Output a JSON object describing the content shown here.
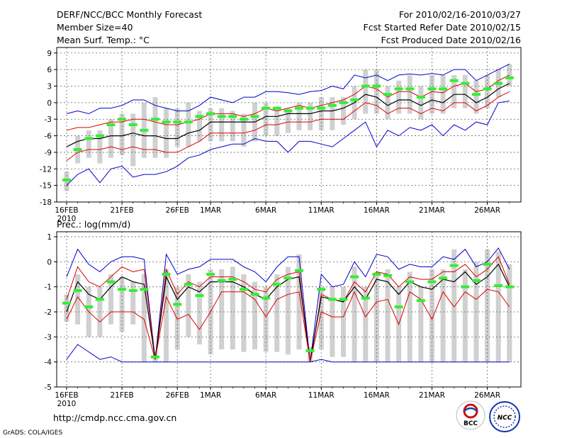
{
  "header": {
    "line1_left": "DERF/NCC/BCC Monthly Forecast",
    "line2_left": "Member Size=40",
    "line3_left": "Mean Surf. Temp.: °C",
    "line1_right": "For 2010/02/16-2010/03/27",
    "line2_right": "Fcst Started Refer Date 2010/02/15",
    "line3_right": "Fcst Produced Date 2010/02/16"
  },
  "footer": {
    "url": "http://cmdp.ncc.cma.gov.cn",
    "credit": "GrADS: COLA/IGES",
    "logo_bcc": "BCC",
    "logo_ncc": "NCC"
  },
  "colors": {
    "max_min": "#0000cc",
    "spread": "#dd0000",
    "mean": "#000000",
    "box": "#d0d0d0",
    "median": "#33ee33",
    "grid": "#666666"
  },
  "chart_data": [
    {
      "type": "line",
      "title": "Mean Surf. Temp.: °C",
      "days": 40,
      "xlabels": [
        {
          "day": 0,
          "label": "16FEB"
        },
        {
          "day": 5,
          "label": "21FEB"
        },
        {
          "day": 10,
          "label": "26FEB"
        },
        {
          "day": 13,
          "label": "1MAR"
        },
        {
          "day": 18,
          "label": "6MAR"
        },
        {
          "day": 23,
          "label": "11MAR"
        },
        {
          "day": 28,
          "label": "16MAR"
        },
        {
          "day": 33,
          "label": "21MAR"
        },
        {
          "day": 38,
          "label": "26MAR"
        }
      ],
      "year_label": "2010",
      "ylim": [
        -18,
        10
      ],
      "yticks": [
        -18,
        -15,
        -12,
        -9,
        -6,
        -3,
        0,
        3,
        6,
        9
      ],
      "series": [
        {
          "name": "max",
          "values": [
            -2,
            -1.5,
            -2,
            -1,
            -1,
            -0.5,
            0.5,
            0.5,
            -0.5,
            -1,
            -1.5,
            -1.5,
            -0.5,
            1,
            0.5,
            0,
            1,
            1,
            2,
            2,
            1.8,
            1.5,
            2,
            2.2,
            3,
            2.5,
            5,
            4.5,
            5,
            4,
            5,
            5.2,
            5,
            5.3,
            5,
            6,
            6,
            4,
            5,
            6,
            7
          ]
        },
        {
          "name": "upper",
          "values": [
            -5,
            -4.5,
            -4.5,
            -4,
            -3.5,
            -3.5,
            -3,
            -3,
            -3.5,
            -4,
            -4,
            -3.5,
            -3,
            -2,
            -2,
            -2,
            -2.5,
            -2,
            -1,
            -1.5,
            -1,
            -0.5,
            -1,
            -0.5,
            0,
            0.5,
            1.5,
            3,
            2.5,
            1,
            2,
            2,
            1,
            2,
            1.8,
            3,
            3.5,
            2,
            2.5,
            4,
            5
          ]
        },
        {
          "name": "mean",
          "values": [
            -8,
            -7,
            -6.5,
            -6.5,
            -6,
            -6,
            -5.5,
            -6,
            -6,
            -6.5,
            -6.5,
            -5.5,
            -5,
            -3.5,
            -3.5,
            -3.5,
            -3.5,
            -3.5,
            -2.5,
            -2.5,
            -2,
            -2,
            -2,
            -1.5,
            -1.5,
            -1,
            0,
            1.5,
            1,
            -0.5,
            0.5,
            0.5,
            -0.5,
            0.5,
            0,
            1.5,
            1.5,
            0,
            1,
            2.5,
            3.5
          ]
        },
        {
          "name": "lower",
          "values": [
            -10.5,
            -9,
            -8.5,
            -8.5,
            -8,
            -8.5,
            -8,
            -8.5,
            -8.5,
            -9,
            -9,
            -8,
            -7,
            -5.5,
            -5.5,
            -5.5,
            -5.5,
            -5,
            -4,
            -4,
            -3.5,
            -3.5,
            -3.5,
            -3,
            -3,
            -3,
            -1.5,
            0,
            -0.5,
            -2,
            -1,
            -1,
            -2,
            -1,
            -1.5,
            0,
            0,
            -1.5,
            -0.5,
            1,
            2
          ]
        },
        {
          "name": "min",
          "values": [
            -15,
            -13,
            -12,
            -14.5,
            -12,
            -11.5,
            -13.5,
            -13,
            -13,
            -12.5,
            -11.5,
            -10,
            -9.5,
            -8.5,
            -8,
            -7.5,
            -7.5,
            -6.5,
            -7,
            -7,
            -9,
            -7,
            -7,
            -7.5,
            -8,
            -6.5,
            -5,
            -3.5,
            -8,
            -5,
            -6,
            -4.5,
            -5,
            -4,
            -6,
            -4,
            -5,
            -3.5,
            -4,
            0,
            0.3
          ]
        }
      ],
      "boxes": [
        {
          "lo": -16,
          "hi": -12.5,
          "med": -14
        },
        {
          "lo": -11,
          "hi": -6,
          "med": -8.5
        },
        {
          "lo": -10,
          "hi": -5,
          "med": -6.5
        },
        {
          "lo": -11,
          "hi": -5,
          "med": -6
        },
        {
          "lo": -10,
          "hi": -3,
          "med": -4
        },
        {
          "lo": -9.5,
          "hi": -2,
          "med": -3
        },
        {
          "lo": -11.5,
          "hi": -2,
          "med": -4
        },
        {
          "lo": -10,
          "hi": 0,
          "med": -5
        },
        {
          "lo": -10,
          "hi": 1,
          "med": -3
        },
        {
          "lo": -10,
          "hi": -1,
          "med": -3.5
        },
        {
          "lo": -8,
          "hi": -1,
          "med": -3.5
        },
        {
          "lo": -8,
          "hi": 0,
          "med": -3.5
        },
        {
          "lo": -7,
          "hi": -1.5,
          "med": -2.5
        },
        {
          "lo": -7,
          "hi": -1,
          "med": -2
        },
        {
          "lo": -7,
          "hi": -1,
          "med": -2.5
        },
        {
          "lo": -7,
          "hi": -1.5,
          "med": -2.5
        },
        {
          "lo": -8,
          "hi": -2,
          "med": -3
        },
        {
          "lo": -7,
          "hi": 0,
          "med": -2.5
        },
        {
          "lo": -6,
          "hi": 0,
          "med": -1
        },
        {
          "lo": -6,
          "hi": -1,
          "med": -1
        },
        {
          "lo": -5.5,
          "hi": -1,
          "med": -1.5
        },
        {
          "lo": -5,
          "hi": 0,
          "med": -1
        },
        {
          "lo": -5,
          "hi": 0,
          "med": -1
        },
        {
          "lo": -5,
          "hi": 1,
          "med": -1
        },
        {
          "lo": -5,
          "hi": 1,
          "med": -0.5
        },
        {
          "lo": -4,
          "hi": 1,
          "med": 0
        },
        {
          "lo": -3,
          "hi": 3,
          "med": 0.5
        },
        {
          "lo": -2,
          "hi": 6,
          "med": 3
        },
        {
          "lo": -2,
          "hi": 6,
          "med": 3
        },
        {
          "lo": -3,
          "hi": 3,
          "med": 1.5
        },
        {
          "lo": -2,
          "hi": 4,
          "med": 2.5
        },
        {
          "lo": -2,
          "hi": 5,
          "med": 2.5
        },
        {
          "lo": -3,
          "hi": 3,
          "med": 1
        },
        {
          "lo": -2,
          "hi": 5,
          "med": 2.5
        },
        {
          "lo": -2,
          "hi": 5,
          "med": 2.5
        },
        {
          "lo": -1,
          "hi": 5,
          "med": 4
        },
        {
          "lo": -1,
          "hi": 5,
          "med": 3.5
        },
        {
          "lo": -2,
          "hi": 4,
          "med": 1.5
        },
        {
          "lo": -1,
          "hi": 5,
          "med": 2.5
        },
        {
          "lo": 1,
          "hi": 6,
          "med": 3.5
        },
        {
          "lo": 3,
          "hi": 7,
          "med": 4.5
        }
      ]
    },
    {
      "type": "line",
      "title": "Prec.: log(mm/d)",
      "days": 40,
      "xlabels": [
        {
          "day": 0,
          "label": "16FEB"
        },
        {
          "day": 5,
          "label": "21FEB"
        },
        {
          "day": 10,
          "label": "26FEB"
        },
        {
          "day": 13,
          "label": "1MAR"
        },
        {
          "day": 18,
          "label": "6MAR"
        },
        {
          "day": 23,
          "label": "11MAR"
        },
        {
          "day": 28,
          "label": "16MAR"
        },
        {
          "day": 33,
          "label": "21MAR"
        },
        {
          "day": 38,
          "label": "26MAR"
        }
      ],
      "year_label": "2010",
      "ylim": [
        -5,
        1.2
      ],
      "yticks": [
        -5,
        -4,
        -3,
        -2,
        -1,
        0,
        1
      ],
      "series": [
        {
          "name": "max",
          "values": [
            -0.6,
            0.5,
            -0.1,
            -0.4,
            0,
            0.2,
            0.2,
            0.1,
            -3.9,
            0.3,
            -0.5,
            -0.3,
            -0.2,
            0.1,
            0.1,
            0.1,
            -0.2,
            -0.4,
            -0.8,
            -0.2,
            0.2,
            0.2,
            -4,
            -0.5,
            -1,
            -0.9,
            0,
            -0.6,
            0.3,
            0.2,
            -0.3,
            -0.1,
            -0.2,
            -0.2,
            0.2,
            0.1,
            0.5,
            -0.2,
            0,
            0.55,
            -0.3
          ]
        },
        {
          "name": "upper",
          "values": [
            -1.5,
            -0.2,
            -0.8,
            -1,
            -0.6,
            -0.2,
            -0.4,
            -0.3,
            -3.9,
            -0.3,
            -1.3,
            -0.8,
            -1,
            -0.6,
            -0.6,
            -0.6,
            -0.8,
            -1.1,
            -1.2,
            -0.7,
            -0.5,
            -0.4,
            -4,
            -1.3,
            -1.5,
            -1.6,
            -0.8,
            -1.2,
            -0.4,
            -0.5,
            -1,
            -0.6,
            -0.7,
            -0.7,
            -0.4,
            -0.4,
            -0.1,
            -0.6,
            -0.3,
            0.2,
            -0.9
          ]
        },
        {
          "name": "mean",
          "values": [
            -2,
            -0.8,
            -1.3,
            -1.5,
            -1,
            -0.6,
            -0.8,
            -0.9,
            -3.9,
            -0.6,
            -1.5,
            -1,
            -1.2,
            -0.8,
            -0.8,
            -0.8,
            -1,
            -1.3,
            -1.5,
            -1,
            -0.7,
            -0.6,
            -4,
            -1.4,
            -1.5,
            -1.6,
            -1,
            -1.5,
            -0.7,
            -0.8,
            -1.3,
            -0.8,
            -1,
            -1.1,
            -0.7,
            -0.8,
            -0.4,
            -0.9,
            -0.6,
            -0.1,
            -1
          ]
        },
        {
          "name": "lower",
          "values": [
            -2.3,
            -1.4,
            -2,
            -2.4,
            -2,
            -2,
            -2,
            -2.3,
            -3.9,
            -1.4,
            -2.3,
            -2.1,
            -2.7,
            -2,
            -1.2,
            -1.2,
            -1.2,
            -1.5,
            -2.2,
            -1.5,
            -1.3,
            -1.2,
            -4,
            -2,
            -2.2,
            -2.2,
            -1.2,
            -2.2,
            -1.6,
            -1.5,
            -2.5,
            -1.2,
            -1.5,
            -2.3,
            -1.2,
            -1.8,
            -1.2,
            -1.5,
            -1.1,
            -1.2,
            -1.8
          ]
        },
        {
          "name": "min",
          "values": [
            -3.9,
            -3.3,
            -3.6,
            -3.9,
            -3.8,
            -4,
            -4,
            -4,
            -4,
            -4,
            -4,
            -4,
            -4,
            -4,
            -4,
            -4,
            -4,
            -4,
            -4,
            -4,
            -4,
            -4,
            -4,
            -3.9,
            -4,
            -4,
            -4,
            -4,
            -4,
            -4,
            -4,
            -4,
            -4,
            -4,
            -4,
            -4,
            -4,
            -4,
            -4,
            -4,
            -4
          ]
        }
      ],
      "boxes": [
        {
          "lo": -2.4,
          "hi": -1.3,
          "med": -1.65
        },
        {
          "lo": -2.5,
          "hi": -0.5,
          "med": -1.15
        },
        {
          "lo": -3,
          "hi": -1,
          "med": -1.8
        },
        {
          "lo": -3,
          "hi": -1,
          "med": -1.5
        },
        {
          "lo": -2.5,
          "hi": -0.5,
          "med": -0.8
        },
        {
          "lo": -2.8,
          "hi": -0.6,
          "med": -1.1
        },
        {
          "lo": -2.5,
          "hi": -0.8,
          "med": -1.15
        },
        {
          "lo": -4,
          "hi": -0.5,
          "med": -1.1
        },
        {
          "lo": -4,
          "hi": -3.6,
          "med": -3.8
        },
        {
          "lo": -4,
          "hi": -0.3,
          "med": -0.5
        },
        {
          "lo": -3.5,
          "hi": -1,
          "med": -1.7
        },
        {
          "lo": -3,
          "hi": -0.5,
          "med": -0.9
        },
        {
          "lo": -3.3,
          "hi": -0.8,
          "med": -1.35
        },
        {
          "lo": -3.7,
          "hi": -0.3,
          "med": -0.5
        },
        {
          "lo": -3.5,
          "hi": -0.3,
          "med": -0.75
        },
        {
          "lo": -3.5,
          "hi": -0.2,
          "med": -0.7
        },
        {
          "lo": -3.6,
          "hi": -0.5,
          "med": -1.1
        },
        {
          "lo": -3.5,
          "hi": -0.8,
          "med": -1.3
        },
        {
          "lo": -3.6,
          "hi": -1,
          "med": -1.45
        },
        {
          "lo": -3.6,
          "hi": -0.5,
          "med": -0.9
        },
        {
          "lo": -3.7,
          "hi": -0.2,
          "med": -0.65
        },
        {
          "lo": -3.5,
          "hi": 0.3,
          "med": -0.35
        },
        {
          "lo": -4,
          "hi": -3.4,
          "med": -3.55
        },
        {
          "lo": -3.5,
          "hi": -1,
          "med": -1.1
        },
        {
          "lo": -3.8,
          "hi": -1,
          "med": -1.5
        },
        {
          "lo": -3.8,
          "hi": -1,
          "med": -1.5
        },
        {
          "lo": -4,
          "hi": -0.2,
          "med": -0.6
        },
        {
          "lo": -4,
          "hi": -1,
          "med": -1.45
        },
        {
          "lo": -4,
          "hi": -0.4,
          "med": -0.5
        },
        {
          "lo": -4,
          "hi": -0.3,
          "med": -0.55
        },
        {
          "lo": -4,
          "hi": -1,
          "med": -1.8
        },
        {
          "lo": -4,
          "hi": -0.4,
          "med": -0.8
        },
        {
          "lo": -4,
          "hi": -1,
          "med": -1.55
        },
        {
          "lo": -4,
          "hi": -0.3,
          "med": -0.8
        },
        {
          "lo": -4,
          "hi": -0.3,
          "med": -0.65
        },
        {
          "lo": -4,
          "hi": 0.5,
          "med": -0.15
        },
        {
          "lo": -4,
          "hi": -0.3,
          "med": -1
        },
        {
          "lo": -4,
          "hi": 0,
          "med": -0.75
        },
        {
          "lo": -4,
          "hi": 0.5,
          "med": -0.1
        },
        {
          "lo": -4,
          "hi": 0.4,
          "med": -0.95
        },
        {
          "lo": -4,
          "hi": -0.1,
          "med": -1
        }
      ]
    }
  ]
}
